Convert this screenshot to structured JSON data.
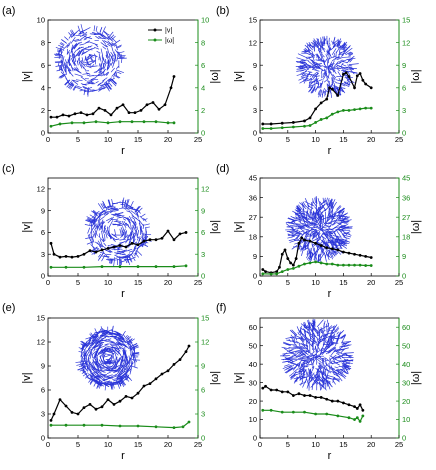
{
  "colors": {
    "v": "#000000",
    "omega": "#1a8c1a",
    "sphere": "#2b35d8",
    "axis": "#000000"
  },
  "legend": {
    "v": "|v|",
    "omega": "|ω|"
  },
  "chart_data": [
    {
      "type": "line",
      "label": "(a)",
      "xlabel": "r",
      "ylabel_left": "|v|",
      "ylabel_right": "|ω|",
      "xlim": [
        0,
        25
      ],
      "ylim_left": [
        0,
        10
      ],
      "ylim_right": [
        0,
        10
      ],
      "xticks": [
        0,
        5,
        10,
        15,
        20,
        25
      ],
      "yticks_left": [
        0,
        2,
        4,
        6,
        8,
        10
      ],
      "yticks_right": [
        0,
        2,
        4,
        6,
        8,
        10
      ],
      "legend": true,
      "series": [
        {
          "name": "|v|",
          "axis": "left",
          "x": [
            0.5,
            1.5,
            2.5,
            3.5,
            4.5,
            5.5,
            6.5,
            7.5,
            8.5,
            9.5,
            10.5,
            11.5,
            12.5,
            13.5,
            14.5,
            15.5,
            16.5,
            17.5,
            18.5,
            19.5,
            20.5,
            21.0
          ],
          "y": [
            1.4,
            1.4,
            1.6,
            1.5,
            1.7,
            1.8,
            1.6,
            1.7,
            2.2,
            2.0,
            1.6,
            2.2,
            2.5,
            1.8,
            1.8,
            2.0,
            2.5,
            2.7,
            2.1,
            2.5,
            4.0,
            5.0
          ]
        },
        {
          "name": "|ω|",
          "axis": "right",
          "x": [
            0.5,
            2,
            4,
            6,
            8,
            10,
            12,
            14,
            16,
            18,
            20,
            21
          ],
          "y": [
            0.6,
            0.8,
            0.9,
            0.9,
            1.0,
            0.9,
            1.0,
            1.0,
            1.0,
            1.0,
            0.9,
            0.9
          ]
        }
      ]
    },
    {
      "type": "line",
      "label": "(b)",
      "xlabel": "r",
      "ylabel_left": "|v|",
      "ylabel_right": "|ω|",
      "xlim": [
        0,
        25
      ],
      "ylim_left": [
        0,
        15
      ],
      "ylim_right": [
        0,
        15
      ],
      "xticks": [
        0,
        5,
        10,
        15,
        20,
        25
      ],
      "yticks_left": [
        0,
        3,
        6,
        9,
        12,
        15
      ],
      "yticks_right": [
        0,
        3,
        6,
        9,
        12,
        15
      ],
      "legend": false,
      "series": [
        {
          "name": "|v|",
          "axis": "left",
          "x": [
            0.5,
            2,
            4,
            6,
            8,
            9,
            10,
            11,
            12,
            12.5,
            13,
            14,
            15,
            15.5,
            16,
            17,
            17.5,
            18,
            18.5,
            19,
            20
          ],
          "y": [
            1.2,
            1.2,
            1.3,
            1.4,
            1.6,
            2.0,
            3.2,
            4.0,
            4.5,
            6.0,
            5.8,
            5.0,
            7.8,
            8.0,
            7.5,
            6.0,
            7.6,
            7.9,
            7.0,
            6.5,
            6.0
          ]
        },
        {
          "name": "|ω|",
          "axis": "right",
          "x": [
            0.5,
            2,
            4,
            6,
            8,
            9,
            10,
            11,
            12,
            13,
            14,
            15,
            16,
            17,
            18,
            19,
            20
          ],
          "y": [
            0.6,
            0.6,
            0.7,
            0.8,
            0.9,
            1.0,
            1.4,
            1.8,
            2.0,
            2.5,
            2.8,
            3.0,
            3.0,
            3.1,
            3.2,
            3.3,
            3.3
          ]
        }
      ]
    },
    {
      "type": "line",
      "label": "(c)",
      "xlabel": "r",
      "ylabel_left": "|v|",
      "ylabel_right": "|ω|",
      "xlim": [
        0,
        25
      ],
      "ylim_left": [
        0,
        13.5
      ],
      "ylim_right": [
        0,
        13.5
      ],
      "xticks": [
        0,
        5,
        10,
        15,
        20,
        25
      ],
      "yticks_left": [
        0,
        3,
        6,
        9,
        12
      ],
      "yticks_right": [
        0,
        3,
        6,
        9,
        12
      ],
      "legend": false,
      "series": [
        {
          "name": "|v|",
          "axis": "left",
          "x": [
            0.5,
            1,
            2,
            3,
            4,
            5,
            6,
            7,
            8,
            9,
            10,
            11,
            12,
            13,
            14,
            15,
            16,
            17,
            18,
            19,
            20,
            21,
            22,
            23
          ],
          "y": [
            4.5,
            3.0,
            2.6,
            2.7,
            2.6,
            2.7,
            3.0,
            3.5,
            3.3,
            3.6,
            3.8,
            4.0,
            4.2,
            4.0,
            4.5,
            4.3,
            4.8,
            5.0,
            5.0,
            5.2,
            6.2,
            5.0,
            5.8,
            6.0
          ]
        },
        {
          "name": "|ω|",
          "axis": "right",
          "x": [
            0.5,
            3,
            6,
            9,
            12,
            15,
            18,
            21,
            23
          ],
          "y": [
            1.2,
            1.2,
            1.2,
            1.3,
            1.3,
            1.3,
            1.3,
            1.3,
            1.4
          ]
        }
      ]
    },
    {
      "type": "line",
      "label": "(d)",
      "xlabel": "r",
      "ylabel_left": "|v|",
      "ylabel_right": "|ω|",
      "xlim": [
        0,
        25
      ],
      "ylim_left": [
        0,
        45
      ],
      "ylim_right": [
        0,
        45
      ],
      "xticks": [
        0,
        5,
        10,
        15,
        20,
        25
      ],
      "yticks_left": [
        0,
        9,
        18,
        27,
        36,
        45
      ],
      "yticks_right": [
        0,
        9,
        18,
        27,
        36,
        45
      ],
      "legend": false,
      "series": [
        {
          "name": "|v|",
          "axis": "left",
          "x": [
            0.5,
            1,
            2,
            3,
            3.5,
            4,
            4.5,
            5,
            5.5,
            6,
            6.5,
            7,
            7.5,
            8,
            9,
            10,
            11,
            12,
            13,
            14,
            15,
            16,
            17,
            18,
            19,
            20
          ],
          "y": [
            3.0,
            2.0,
            1.5,
            2.0,
            4.0,
            10.0,
            12.0,
            8.0,
            6.0,
            5.0,
            8.0,
            15.0,
            17.5,
            16.5,
            16.0,
            15.0,
            14.0,
            13.0,
            12.5,
            12.0,
            11.0,
            10.5,
            10.0,
            9.5,
            9.0,
            8.5
          ]
        },
        {
          "name": "|ω|",
          "axis": "right",
          "x": [
            0.5,
            2,
            3,
            4,
            5,
            6,
            7,
            8,
            9,
            10,
            11,
            12,
            13,
            14,
            15,
            16,
            17,
            18,
            19,
            20
          ],
          "y": [
            1.0,
            0.9,
            1.0,
            2.0,
            3.0,
            3.5,
            4.5,
            5.5,
            6.0,
            6.5,
            6.0,
            5.5,
            5.5,
            5.0,
            5.0,
            5.0,
            5.0,
            5.0,
            4.8,
            4.8
          ]
        }
      ]
    },
    {
      "type": "line",
      "label": "(e)",
      "xlabel": "r",
      "ylabel_left": "|v|",
      "ylabel_right": "|ω|",
      "xlim": [
        0,
        25
      ],
      "ylim_left": [
        0,
        15
      ],
      "ylim_right": [
        0,
        15
      ],
      "xticks": [
        0,
        5,
        10,
        15,
        20,
        25
      ],
      "yticks_left": [
        0,
        3,
        6,
        9,
        12,
        15
      ],
      "yticks_right": [
        0,
        3,
        6,
        9,
        12,
        15
      ],
      "legend": false,
      "series": [
        {
          "name": "|v|",
          "axis": "left",
          "x": [
            0.5,
            1,
            2,
            3,
            4,
            5,
            6,
            7,
            8,
            9,
            10,
            11,
            12,
            13,
            14,
            15,
            16,
            17,
            18,
            19,
            20,
            21,
            22,
            23,
            23.5
          ],
          "y": [
            2.2,
            3.0,
            4.8,
            4.0,
            3.2,
            3.0,
            3.8,
            4.2,
            3.6,
            3.9,
            4.8,
            4.2,
            4.6,
            5.2,
            5.0,
            5.6,
            6.5,
            6.8,
            7.4,
            8.0,
            8.4,
            9.2,
            9.8,
            10.8,
            11.5
          ]
        },
        {
          "name": "|ω|",
          "axis": "right",
          "x": [
            0.5,
            3,
            6,
            9,
            12,
            15,
            18,
            21,
            22.5,
            23.5
          ],
          "y": [
            1.6,
            1.6,
            1.6,
            1.6,
            1.5,
            1.5,
            1.4,
            1.3,
            1.4,
            2.0
          ]
        }
      ]
    },
    {
      "type": "line",
      "label": "(f)",
      "xlabel": "r",
      "ylabel_left": "|v|",
      "ylabel_right": "|ω|",
      "xlim": [
        0,
        25
      ],
      "ylim_left": [
        0,
        65
      ],
      "ylim_right": [
        0,
        65
      ],
      "xticks": [
        0,
        5,
        10,
        15,
        20,
        25
      ],
      "yticks_left": [
        0,
        10,
        20,
        30,
        40,
        50,
        60
      ],
      "yticks_right": [
        0,
        10,
        20,
        30,
        40,
        50,
        60
      ],
      "legend": false,
      "series": [
        {
          "name": "|v|",
          "axis": "left",
          "x": [
            0.5,
            1,
            2,
            3,
            4,
            5,
            6,
            7,
            8,
            9,
            10,
            11,
            12,
            13,
            14,
            15,
            16,
            17,
            17.5,
            18,
            18.5
          ],
          "y": [
            27,
            28,
            26,
            26,
            25,
            25,
            23,
            24,
            23,
            23,
            22,
            22,
            21,
            20,
            20,
            19,
            18,
            17,
            16,
            18,
            15
          ]
        },
        {
          "name": "|ω|",
          "axis": "right",
          "x": [
            0.5,
            2,
            4,
            6,
            8,
            10,
            12,
            14,
            16,
            17,
            17.5,
            18,
            18.5
          ],
          "y": [
            15,
            15,
            14,
            14,
            14,
            13,
            13,
            12,
            11,
            10,
            11,
            9,
            12
          ]
        }
      ]
    }
  ]
}
